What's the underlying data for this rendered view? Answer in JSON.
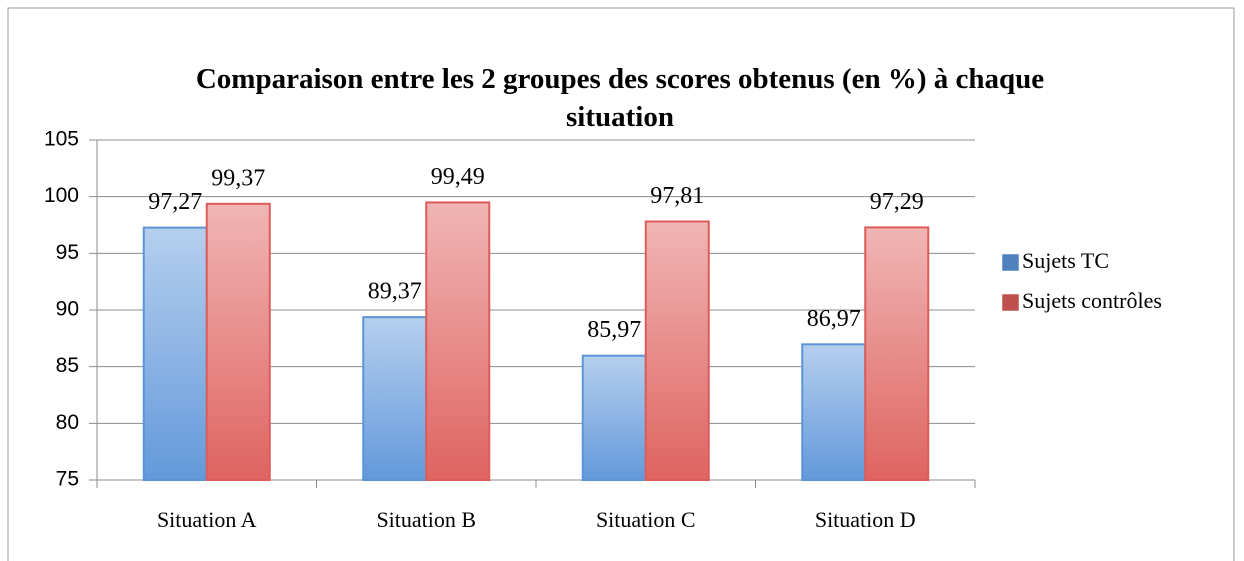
{
  "chart_data": {
    "type": "bar",
    "title": "Comparaison entre les 2 groupes des scores obtenus (en %) à chaque situation",
    "categories": [
      "Situation A",
      "Situation B",
      "Situation C",
      "Situation D"
    ],
    "series": [
      {
        "name": "Sujets TC",
        "color": "#4f81bd",
        "values": [
          97.27,
          89.37,
          85.97,
          86.97
        ],
        "value_labels": [
          "97,27",
          "89,37",
          "85,97",
          "86,97"
        ]
      },
      {
        "name": "Sujets contrôles",
        "color": "#c0504d",
        "values": [
          99.37,
          99.49,
          97.81,
          97.29
        ],
        "value_labels": [
          "99,37",
          "99,49",
          "97,81",
          "97,29"
        ]
      }
    ],
    "ylim": [
      75,
      105
    ],
    "yticks": [
      75,
      80,
      85,
      90,
      95,
      100,
      105
    ],
    "grid": true,
    "legend": "right"
  }
}
